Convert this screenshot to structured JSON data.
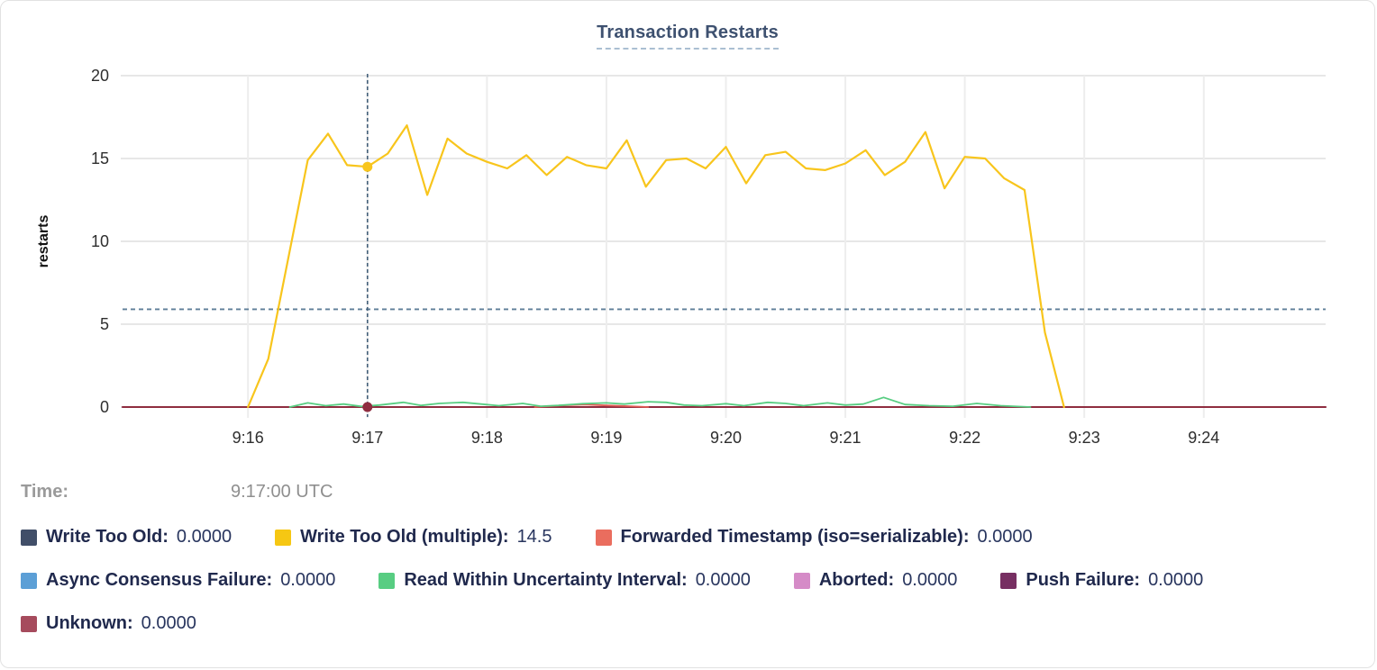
{
  "title": "Transaction Restarts",
  "time_row": {
    "label": "Time:",
    "value": "9:17:00 UTC"
  },
  "chart_data": {
    "type": "line",
    "title": "Transaction Restarts",
    "ylabel": "restarts",
    "ylim": [
      0,
      20
    ],
    "y_ticks": [
      0,
      5,
      10,
      15,
      20
    ],
    "x_domain_minutes": [
      14.95,
      25.02
    ],
    "x_ticks": [
      {
        "t": 16,
        "label": "9:16"
      },
      {
        "t": 17,
        "label": "9:17"
      },
      {
        "t": 18,
        "label": "9:18"
      },
      {
        "t": 19,
        "label": "9:19"
      },
      {
        "t": 20,
        "label": "9:20"
      },
      {
        "t": 21,
        "label": "9:21"
      },
      {
        "t": 22,
        "label": "9:22"
      },
      {
        "t": 23,
        "label": "9:23"
      },
      {
        "t": 24,
        "label": "9:24"
      }
    ],
    "grid": true,
    "legend_position": "bottom",
    "threshold_line": {
      "value": 5.9,
      "style": "dashed",
      "color": "#5e7e98"
    },
    "crosshair": {
      "t": 17,
      "time_label": "9:17:00 UTC",
      "color": "#44607a",
      "points": [
        {
          "series": "Write Too Old (multiple)",
          "value": 14.5
        },
        {
          "series": "Unknown",
          "value": 0
        }
      ]
    },
    "series": [
      {
        "name": "Write Too Old",
        "color": "#414e68",
        "width": 1.5,
        "values": [
          [
            14.95,
            0
          ],
          [
            25.02,
            0
          ]
        ]
      },
      {
        "name": "Async Consensus Failure",
        "color": "#5c9fd6",
        "width": 1.5,
        "values": [
          [
            14.95,
            0
          ],
          [
            25.02,
            0
          ]
        ]
      },
      {
        "name": "Aborted",
        "color": "#d58bc7",
        "width": 1.5,
        "values": [
          [
            14.95,
            0
          ],
          [
            25.02,
            0
          ]
        ]
      },
      {
        "name": "Push Failure",
        "color": "#772f62",
        "width": 1.5,
        "values": [
          [
            14.95,
            0
          ],
          [
            25.02,
            0
          ]
        ]
      },
      {
        "name": "Unknown",
        "color": "#8f2d40",
        "width": 2,
        "values": [
          [
            14.95,
            0
          ],
          [
            25.02,
            0
          ]
        ]
      },
      {
        "name": "Forwarded Timestamp (iso=serializable)",
        "color": "#e25c55",
        "width": 1.8,
        "values": [
          [
            18.4,
            0
          ],
          [
            18.62,
            0.1
          ],
          [
            18.82,
            0.15
          ],
          [
            19.0,
            0.1
          ],
          [
            19.2,
            0.05
          ],
          [
            19.35,
            0
          ]
        ]
      },
      {
        "name": "Read Within Uncertainty Interval",
        "color": "#58cd82",
        "width": 1.8,
        "values": [
          [
            16.35,
            0
          ],
          [
            16.5,
            0.25
          ],
          [
            16.65,
            0.08
          ],
          [
            16.8,
            0.18
          ],
          [
            16.95,
            0.04
          ],
          [
            17.1,
            0.12
          ],
          [
            17.3,
            0.28
          ],
          [
            17.45,
            0.1
          ],
          [
            17.6,
            0.22
          ],
          [
            17.8,
            0.28
          ],
          [
            17.95,
            0.18
          ],
          [
            18.1,
            0.08
          ],
          [
            18.3,
            0.22
          ],
          [
            18.45,
            0.05
          ],
          [
            18.6,
            0.1
          ],
          [
            18.8,
            0.2
          ],
          [
            19.0,
            0.25
          ],
          [
            19.15,
            0.18
          ],
          [
            19.35,
            0.32
          ],
          [
            19.5,
            0.28
          ],
          [
            19.65,
            0.12
          ],
          [
            19.8,
            0.08
          ],
          [
            20.0,
            0.2
          ],
          [
            20.15,
            0.08
          ],
          [
            20.35,
            0.28
          ],
          [
            20.5,
            0.22
          ],
          [
            20.65,
            0.08
          ],
          [
            20.85,
            0.25
          ],
          [
            21.0,
            0.12
          ],
          [
            21.15,
            0.18
          ],
          [
            21.32,
            0.58
          ],
          [
            21.5,
            0.15
          ],
          [
            21.7,
            0.08
          ],
          [
            21.9,
            0.05
          ],
          [
            22.1,
            0.22
          ],
          [
            22.3,
            0.08
          ],
          [
            22.55,
            0
          ]
        ]
      },
      {
        "name": "Write Too Old (multiple)",
        "color": "#f8c51c",
        "width": 2.2,
        "values": [
          [
            16.0,
            0
          ],
          [
            16.17,
            2.9
          ],
          [
            16.5,
            14.9
          ],
          [
            16.67,
            16.5
          ],
          [
            16.83,
            14.6
          ],
          [
            17.0,
            14.5
          ],
          [
            17.17,
            15.3
          ],
          [
            17.33,
            17.0
          ],
          [
            17.5,
            12.8
          ],
          [
            17.67,
            16.2
          ],
          [
            17.83,
            15.3
          ],
          [
            18.0,
            14.8
          ],
          [
            18.17,
            14.4
          ],
          [
            18.33,
            15.2
          ],
          [
            18.5,
            14.0
          ],
          [
            18.67,
            15.1
          ],
          [
            18.83,
            14.6
          ],
          [
            19.0,
            14.4
          ],
          [
            19.17,
            16.1
          ],
          [
            19.33,
            13.3
          ],
          [
            19.5,
            14.9
          ],
          [
            19.67,
            15.0
          ],
          [
            19.83,
            14.4
          ],
          [
            20.0,
            15.7
          ],
          [
            20.17,
            13.5
          ],
          [
            20.33,
            15.2
          ],
          [
            20.5,
            15.4
          ],
          [
            20.67,
            14.4
          ],
          [
            20.83,
            14.3
          ],
          [
            21.0,
            14.7
          ],
          [
            21.17,
            15.5
          ],
          [
            21.33,
            14.0
          ],
          [
            21.5,
            14.8
          ],
          [
            21.67,
            16.6
          ],
          [
            21.83,
            13.2
          ],
          [
            22.0,
            15.1
          ],
          [
            22.17,
            15.0
          ],
          [
            22.33,
            13.8
          ],
          [
            22.5,
            13.1
          ],
          [
            22.67,
            4.5
          ],
          [
            22.83,
            0
          ]
        ]
      }
    ]
  },
  "legend": [
    {
      "label": "Write Too Old:",
      "value": "0.0000",
      "color": "#414e68"
    },
    {
      "label": "Write Too Old (multiple):",
      "value": "14.5",
      "color": "#f6c713"
    },
    {
      "label": "Forwarded Timestamp (iso=serializable):",
      "value": "0.0000",
      "color": "#ea6d5e"
    },
    {
      "label": "Async Consensus Failure:",
      "value": "0.0000",
      "color": "#5c9fd6"
    },
    {
      "label": "Read Within Uncertainty Interval:",
      "value": "0.0000",
      "color": "#58cd82"
    },
    {
      "label": "Aborted:",
      "value": "0.0000",
      "color": "#d58bc7"
    },
    {
      "label": "Push Failure:",
      "value": "0.0000",
      "color": "#772f62"
    },
    {
      "label": "Unknown:",
      "value": "0.0000",
      "color": "#a64b5d"
    }
  ]
}
